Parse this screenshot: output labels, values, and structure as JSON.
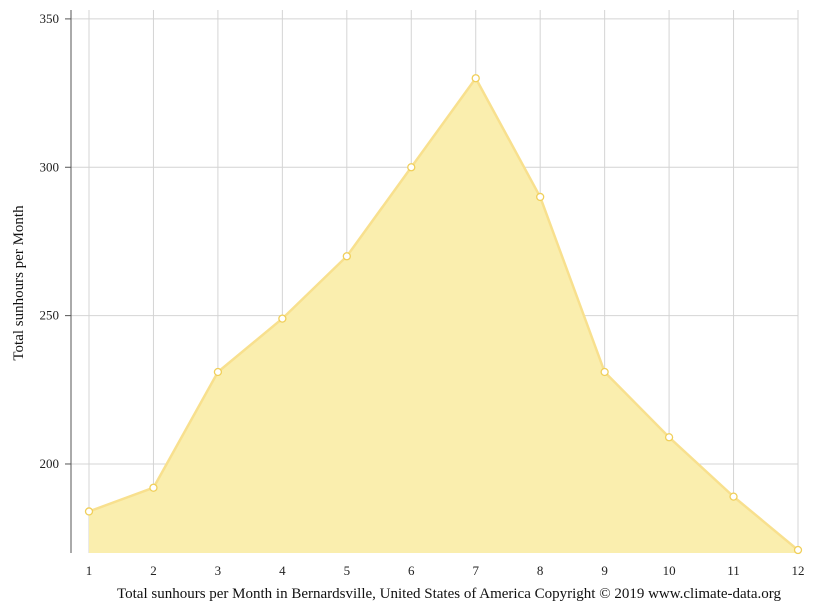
{
  "chart_data": {
    "type": "area",
    "x": [
      "1",
      "2",
      "3",
      "4",
      "5",
      "6",
      "7",
      "8",
      "9",
      "10",
      "11",
      "12"
    ],
    "values": [
      184,
      192,
      231,
      249,
      270,
      300,
      330,
      290,
      231,
      209,
      189,
      171
    ],
    "ylabel": "Total sunhours per Month",
    "xlabel": "Total sunhours per Month in Bernardsville, United States of America Copyright © 2019 www.climate-data.org",
    "yticks": [
      200,
      250,
      300,
      350
    ],
    "ylim": [
      170,
      353
    ],
    "grid": true,
    "legend": "none",
    "colors": {
      "fill": "#faeeae",
      "line": "#f8e08e",
      "marker_stroke": "#f0cf5a",
      "grid": "#d4d4d4",
      "axis": "#555555"
    }
  }
}
